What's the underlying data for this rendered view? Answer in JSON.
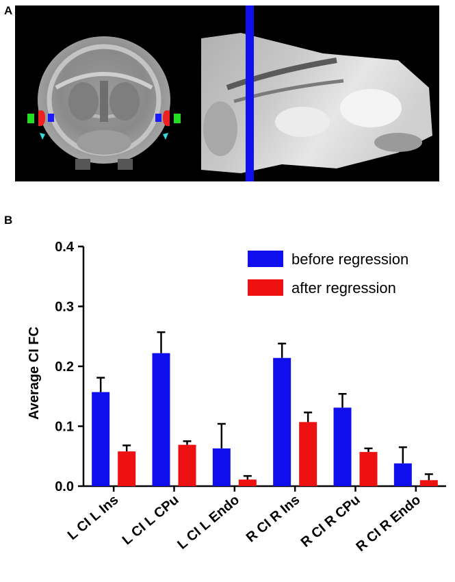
{
  "panel_a": {
    "label": "A",
    "colors": {
      "background": "#000000",
      "slice_line": "#1010ee",
      "roi_green": "#22dd22",
      "roi_red": "#ee2222",
      "roi_blue": "#1a1aff",
      "roi_cyan": "#33dddd"
    }
  },
  "panel_b": {
    "label": "B"
  },
  "chart_data": {
    "type": "bar",
    "title": "",
    "xlabel": "",
    "ylabel": "Average CI FC",
    "ylim": [
      0,
      0.4
    ],
    "yticks": [
      "0.0",
      "0.1",
      "0.2",
      "0.3",
      "0.4"
    ],
    "categories": [
      "L CI L Ins",
      "L CI L CPu",
      "L CI L Endo",
      "R CI R Ins",
      "R CI R CPu",
      "R CI R Endo"
    ],
    "series": [
      {
        "name": "before regression",
        "color": "#1010ee",
        "values": [
          0.157,
          0.222,
          0.063,
          0.214,
          0.131,
          0.038
        ],
        "errors": [
          0.024,
          0.035,
          0.041,
          0.024,
          0.023,
          0.027
        ]
      },
      {
        "name": "after regression",
        "color": "#ee1111",
        "values": [
          0.058,
          0.069,
          0.011,
          0.107,
          0.057,
          0.01
        ],
        "errors": [
          0.01,
          0.006,
          0.006,
          0.016,
          0.006,
          0.01
        ]
      }
    ],
    "legend_position": "top-right",
    "grid": false
  }
}
